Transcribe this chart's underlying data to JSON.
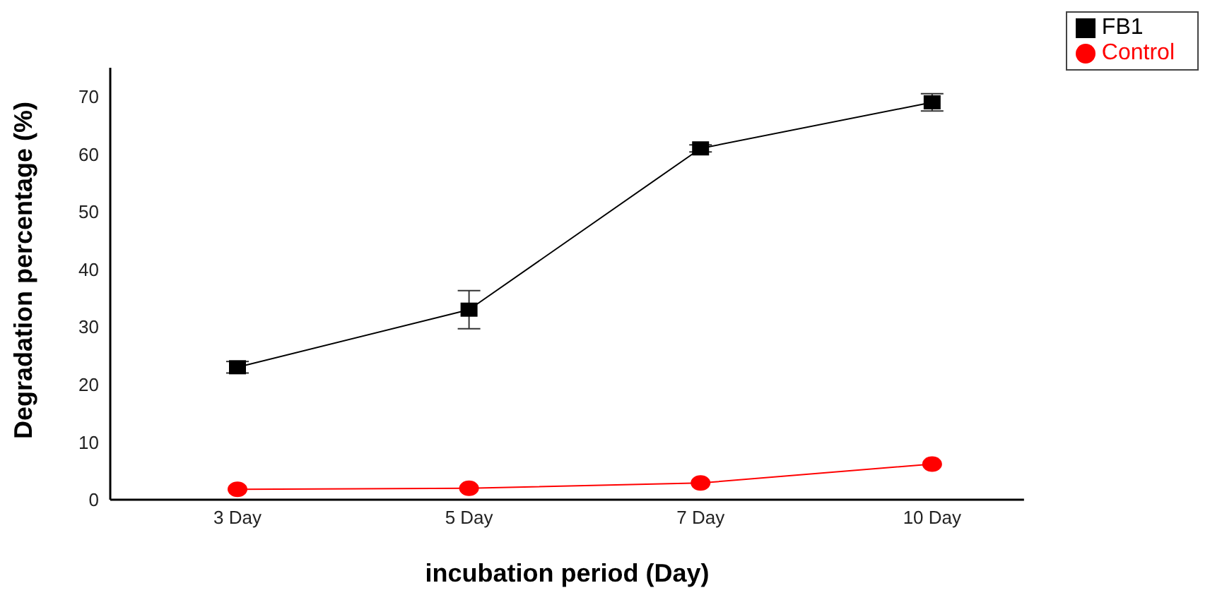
{
  "chart_data": {
    "type": "line",
    "xlabel": "incubation period (Day)",
    "ylabel": "Degradation percentage (%)",
    "categories": [
      "3 Day",
      "5 Day",
      "7 Day",
      "10 Day"
    ],
    "series": [
      {
        "name": "FB1",
        "color": "#000000",
        "marker": "square",
        "values": [
          23,
          33,
          61,
          69
        ],
        "errors": [
          1,
          3.3,
          0.6,
          1.5
        ]
      },
      {
        "name": "Control",
        "color": "#ff0000",
        "marker": "circle",
        "values": [
          1.8,
          2,
          2.9,
          6.2
        ]
      }
    ],
    "ylim": [
      0,
      75
    ],
    "yticks": [
      0,
      10,
      20,
      30,
      40,
      50,
      60,
      70
    ],
    "legend": "top right"
  }
}
